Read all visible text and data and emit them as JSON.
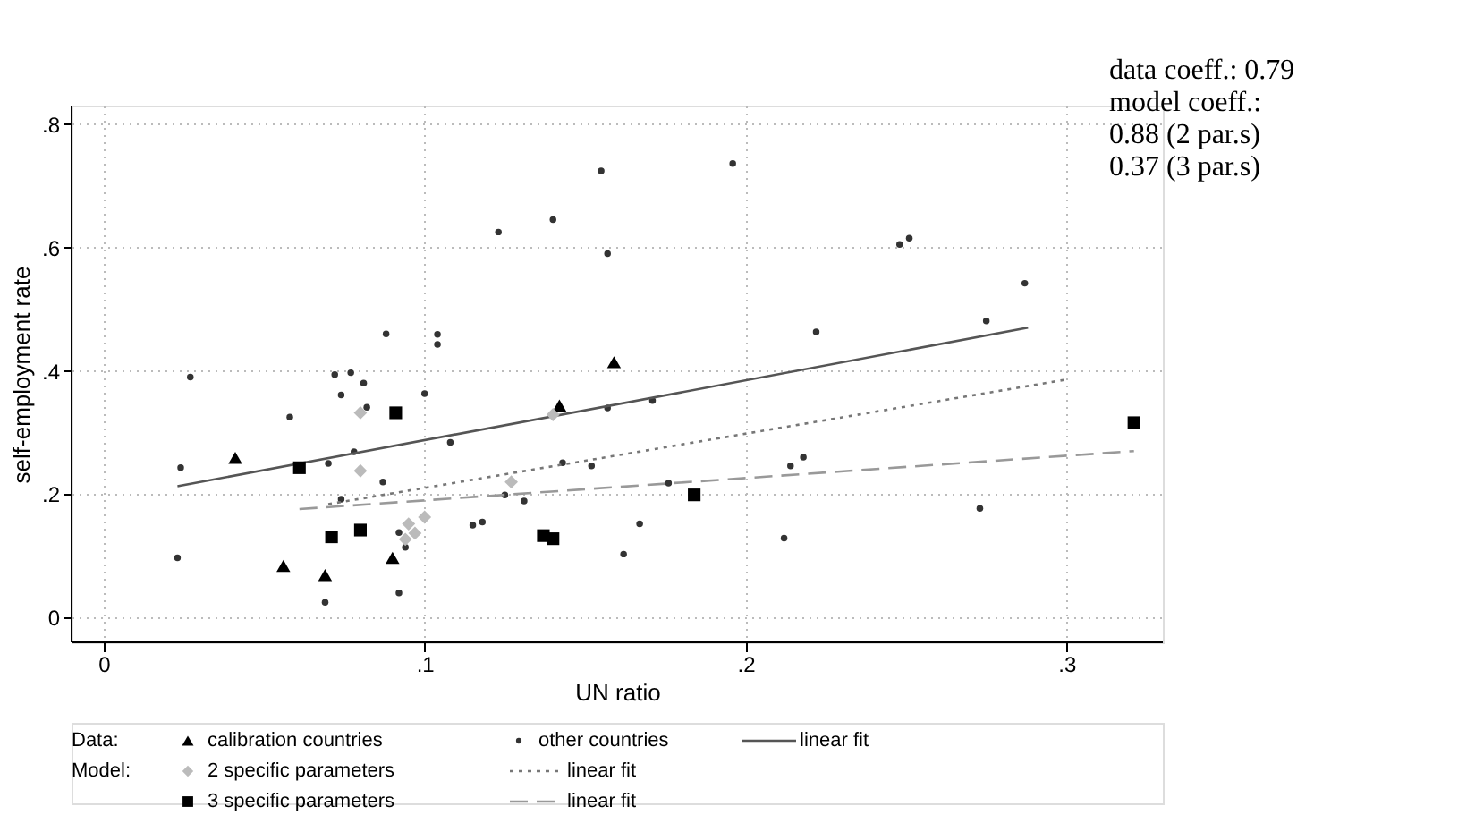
{
  "chart_data": {
    "type": "scatter",
    "xlabel": "UN ratio",
    "ylabel": "self-employment rate",
    "xlim": [
      -0.01,
      0.33
    ],
    "ylim": [
      -0.04,
      0.83
    ],
    "xticks": [
      0,
      {
        "value": 0.1,
        "label": ".1"
      },
      {
        "value": 0.2,
        "label": ".2"
      },
      {
        "value": 0.3,
        "label": ".3"
      }
    ],
    "yticks": [
      0,
      {
        "value": 0.2,
        "label": ".2"
      },
      {
        "value": 0.4,
        "label": ".4"
      },
      {
        "value": 0.6,
        "label": ".6"
      },
      {
        "value": 0.8,
        "label": ".8"
      }
    ],
    "grid": true,
    "legend": "bottom",
    "annotations": [
      "data coeff.: 0.79\nmodel coeff.:\n0.88 (2 par.s)\n0.37 (3 par.s)",
      "Data:",
      "Model:"
    ],
    "series": [
      {
        "name": "calibration countries",
        "type": "scatter",
        "marker": "triangle",
        "color": "#000000",
        "x": [
          0.041,
          0.056,
          0.069,
          0.09,
          0.142,
          0.159
        ],
        "values": [
          0.259,
          0.084,
          0.069,
          0.097,
          0.344,
          0.414
        ]
      },
      {
        "name": "other countries",
        "type": "scatter",
        "marker": "circle",
        "color": "#333333",
        "x": [
          0.088,
          0.104,
          0.104,
          0.027,
          0.072,
          0.077,
          0.081,
          0.074,
          0.082,
          0.1,
          0.058,
          0.108,
          0.024,
          0.078,
          0.07,
          0.087,
          0.074,
          0.092,
          0.094,
          0.023,
          0.069,
          0.092,
          0.157,
          0.171,
          0.143,
          0.152,
          0.176,
          0.125,
          0.131,
          0.115,
          0.118,
          0.167,
          0.162,
          0.212,
          0.214,
          0.218,
          0.222,
          0.275,
          0.273,
          0.123,
          0.14,
          0.155,
          0.157,
          0.196,
          0.248,
          0.251,
          0.287
        ],
        "values": [
          0.46,
          0.459,
          0.443,
          0.39,
          0.394,
          0.397,
          0.38,
          0.361,
          0.341,
          0.363,
          0.325,
          0.284,
          0.243,
          0.269,
          0.25,
          0.22,
          0.192,
          0.138,
          0.114,
          0.097,
          0.025,
          0.04,
          0.34,
          0.352,
          0.251,
          0.246,
          0.218,
          0.199,
          0.189,
          0.15,
          0.155,
          0.152,
          0.103,
          0.129,
          0.246,
          0.26,
          0.463,
          0.481,
          0.177,
          0.625,
          0.645,
          0.724,
          0.59,
          0.736,
          0.605,
          0.615,
          0.542
        ]
      },
      {
        "name": "linear fit",
        "type": "line",
        "marker": "none",
        "line_style": "solid",
        "color": "#555555",
        "x": [
          0.023,
          0.288
        ],
        "values": [
          0.213,
          0.47
        ]
      },
      {
        "name": "2 specific parameters",
        "type": "scatter",
        "marker": "diamond",
        "color": "#bbbbbb",
        "x": [
          0.08,
          0.08,
          0.095,
          0.094,
          0.097,
          0.1,
          0.14,
          0.127
        ],
        "values": [
          0.332,
          0.238,
          0.152,
          0.127,
          0.137,
          0.163,
          0.329,
          0.22
        ]
      },
      {
        "name": "linear fit",
        "type": "line",
        "marker": "none",
        "line_style": "dotted",
        "color": "#777777",
        "x": [
          0.07,
          0.3
        ],
        "values": [
          0.184,
          0.386
        ]
      },
      {
        "name": "3 specific parameters",
        "type": "scatter",
        "marker": "square",
        "color": "#000000",
        "x": [
          0.091,
          0.061,
          0.071,
          0.08,
          0.137,
          0.14,
          0.184,
          0.321
        ],
        "values": [
          0.332,
          0.243,
          0.131,
          0.142,
          0.133,
          0.128,
          0.199,
          0.316
        ]
      },
      {
        "name": "linear fit",
        "type": "line",
        "marker": "none",
        "line_style": "dashed",
        "color": "#999999",
        "x": [
          0.061,
          0.321
        ],
        "values": [
          0.176,
          0.27
        ]
      }
    ]
  }
}
